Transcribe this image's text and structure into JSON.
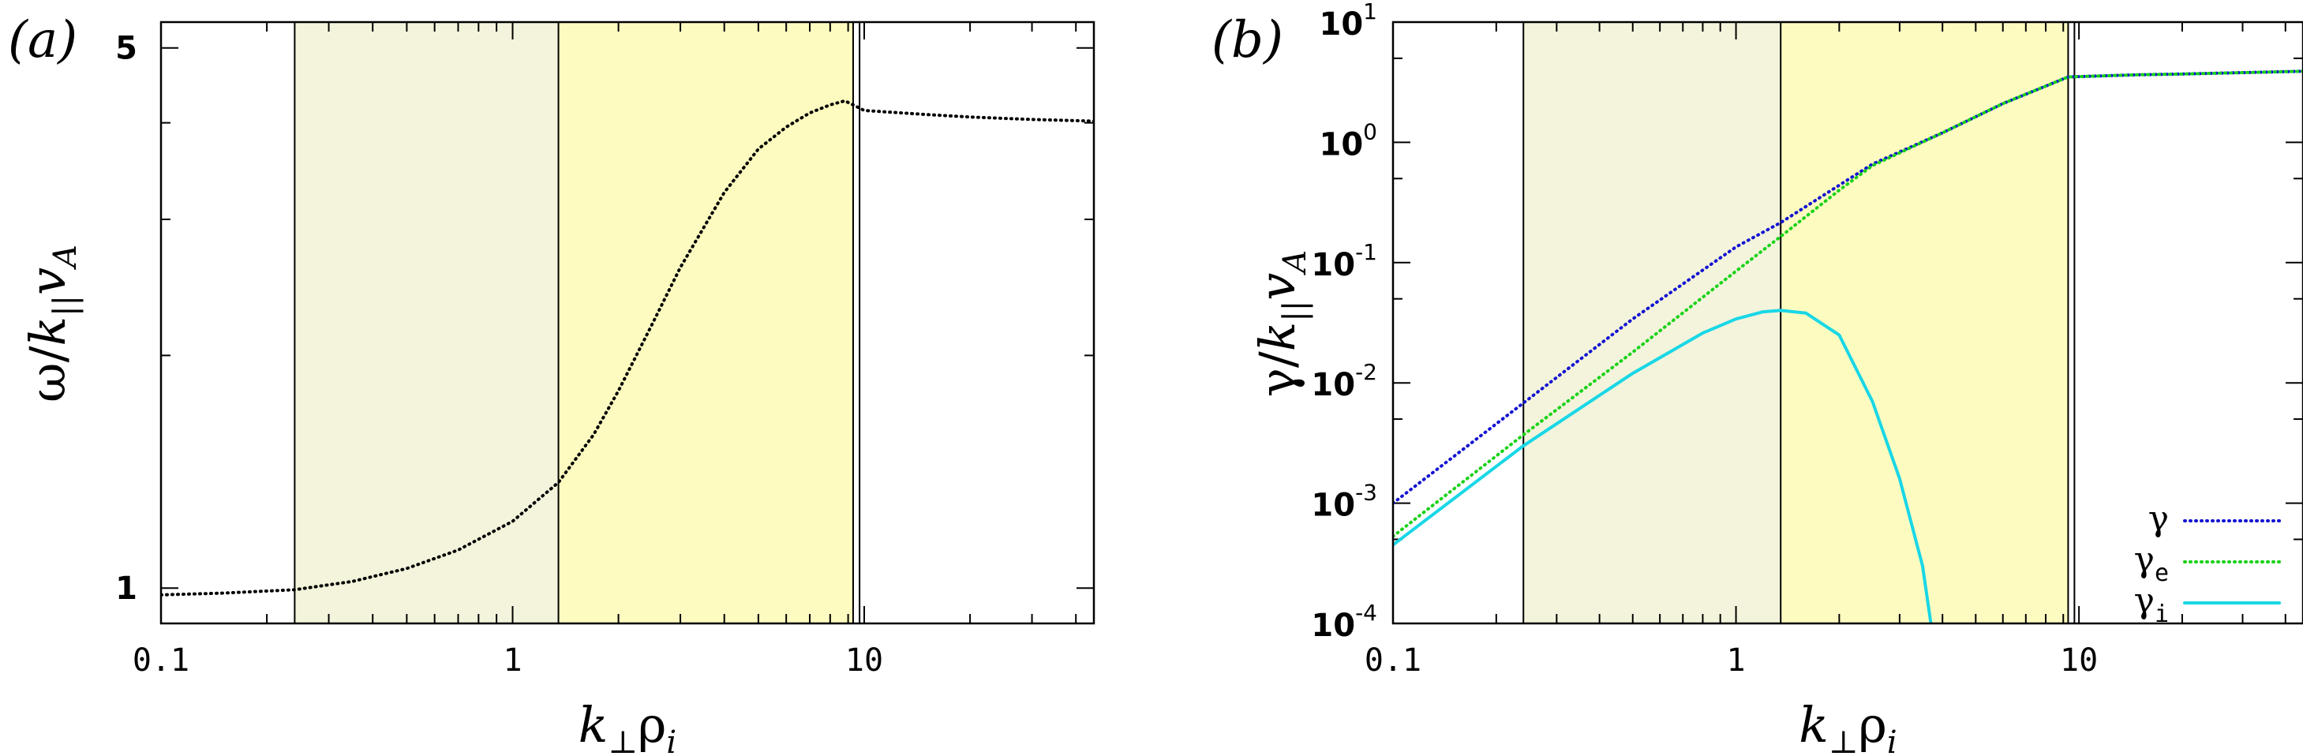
{
  "chart_data": [
    {
      "panel_label": "(a)",
      "type": "line",
      "x_scale": "log",
      "y_scale": "log",
      "xlim": [
        0.1,
        45
      ],
      "ylim": [
        0.9,
        5.4
      ],
      "x_ticks": [
        0.1,
        1,
        10
      ],
      "x_tick_labels": [
        "0.1",
        "1",
        "10"
      ],
      "y_ticks": [
        1,
        5
      ],
      "y_tick_labels": [
        "1",
        "5"
      ],
      "xlabel": {
        "main": "k",
        "sub": "⊥",
        "mid": "ρ",
        "sub2": "i"
      },
      "ylabel": {
        "pre": "ω/",
        "main": "k",
        "sub": "||",
        "post": "v",
        "sub2": "A"
      },
      "shaded_regions": [
        {
          "x0": 0.24,
          "x1": 1.35,
          "color": "#f4f4dc"
        },
        {
          "x0": 1.35,
          "x1": 9.3,
          "color": "#fdfbc0"
        }
      ],
      "vertical_lines": [
        0.24,
        1.35,
        9.3,
        9.7
      ],
      "series": [
        {
          "style": "dotted",
          "color": "#000000",
          "x": [
            0.1,
            0.15,
            0.24,
            0.35,
            0.5,
            0.7,
            1.0,
            1.35,
            1.7,
            2.0,
            2.5,
            3.0,
            4.0,
            5.0,
            6.0,
            7.0,
            8.0,
            8.8,
            9.3,
            10.0,
            15,
            20,
            30,
            45
          ],
          "y": [
            0.98,
            0.985,
            0.995,
            1.02,
            1.06,
            1.12,
            1.22,
            1.37,
            1.58,
            1.8,
            2.2,
            2.6,
            3.25,
            3.7,
            3.95,
            4.12,
            4.22,
            4.27,
            4.22,
            4.15,
            4.1,
            4.07,
            4.04,
            4.02
          ]
        }
      ]
    },
    {
      "panel_label": "(b)",
      "type": "line",
      "x_scale": "log",
      "y_scale": "log",
      "xlim": [
        0.1,
        45
      ],
      "ylim": [
        0.0001,
        10
      ],
      "x_ticks": [
        0.1,
        1,
        10
      ],
      "x_tick_labels": [
        "0.1",
        "1",
        "10"
      ],
      "y_ticks": [
        0.0001,
        0.001,
        0.01,
        0.1,
        1,
        10
      ],
      "y_tick_labels": [
        {
          "base": "10",
          "exp": "-4"
        },
        {
          "base": "10",
          "exp": "-3"
        },
        {
          "base": "10",
          "exp": "-2"
        },
        {
          "base": "10",
          "exp": "-1"
        },
        {
          "base": "10",
          "exp": "0"
        },
        {
          "base": "10",
          "exp": "1"
        }
      ],
      "xlabel": {
        "main": "k",
        "sub": "⊥",
        "mid": "ρ",
        "sub2": "i"
      },
      "ylabel": {
        "pre": "γ/",
        "main": "k",
        "sub": "||",
        "post": "v",
        "sub2": "A"
      },
      "shaded_regions": [
        {
          "x0": 0.24,
          "x1": 1.35,
          "color": "#f4f4dc"
        },
        {
          "x0": 1.35,
          "x1": 9.3,
          "color": "#fdfbc0"
        }
      ],
      "vertical_lines": [
        0.24,
        1.35,
        9.3,
        9.7
      ],
      "legend_position": "bottom-right",
      "series": [
        {
          "name": "γ",
          "name_sub": "",
          "style": "dotted",
          "color": "#1414d2",
          "x": [
            0.1,
            0.24,
            0.5,
            1.0,
            1.35,
            2.0,
            2.5,
            4.0,
            6.0,
            9.3,
            15,
            20,
            30,
            45
          ],
          "y": [
            0.001,
            0.0068,
            0.034,
            0.135,
            0.215,
            0.44,
            0.66,
            1.2,
            2.1,
            3.5,
            3.65,
            3.7,
            3.8,
            3.9
          ]
        },
        {
          "name": "γ",
          "name_sub": "e",
          "style": "dotted",
          "color": "#19d219",
          "x": [
            0.1,
            0.24,
            0.5,
            1.0,
            1.35,
            2.0,
            2.5,
            4.0,
            6.0,
            9.3,
            15,
            20,
            30,
            45
          ],
          "y": [
            0.00053,
            0.0037,
            0.018,
            0.085,
            0.165,
            0.4,
            0.64,
            1.2,
            2.1,
            3.5,
            3.65,
            3.7,
            3.8,
            3.9
          ]
        },
        {
          "name": "γ",
          "name_sub": "i",
          "style": "solid",
          "color": "#19d7e6",
          "x": [
            0.1,
            0.24,
            0.5,
            0.8,
            1.0,
            1.2,
            1.35,
            1.6,
            2.0,
            2.5,
            3.0,
            3.5,
            3.7
          ],
          "y": [
            0.00045,
            0.003,
            0.012,
            0.026,
            0.034,
            0.039,
            0.04,
            0.038,
            0.025,
            0.007,
            0.0016,
            0.0003,
            0.0001
          ]
        }
      ]
    }
  ]
}
